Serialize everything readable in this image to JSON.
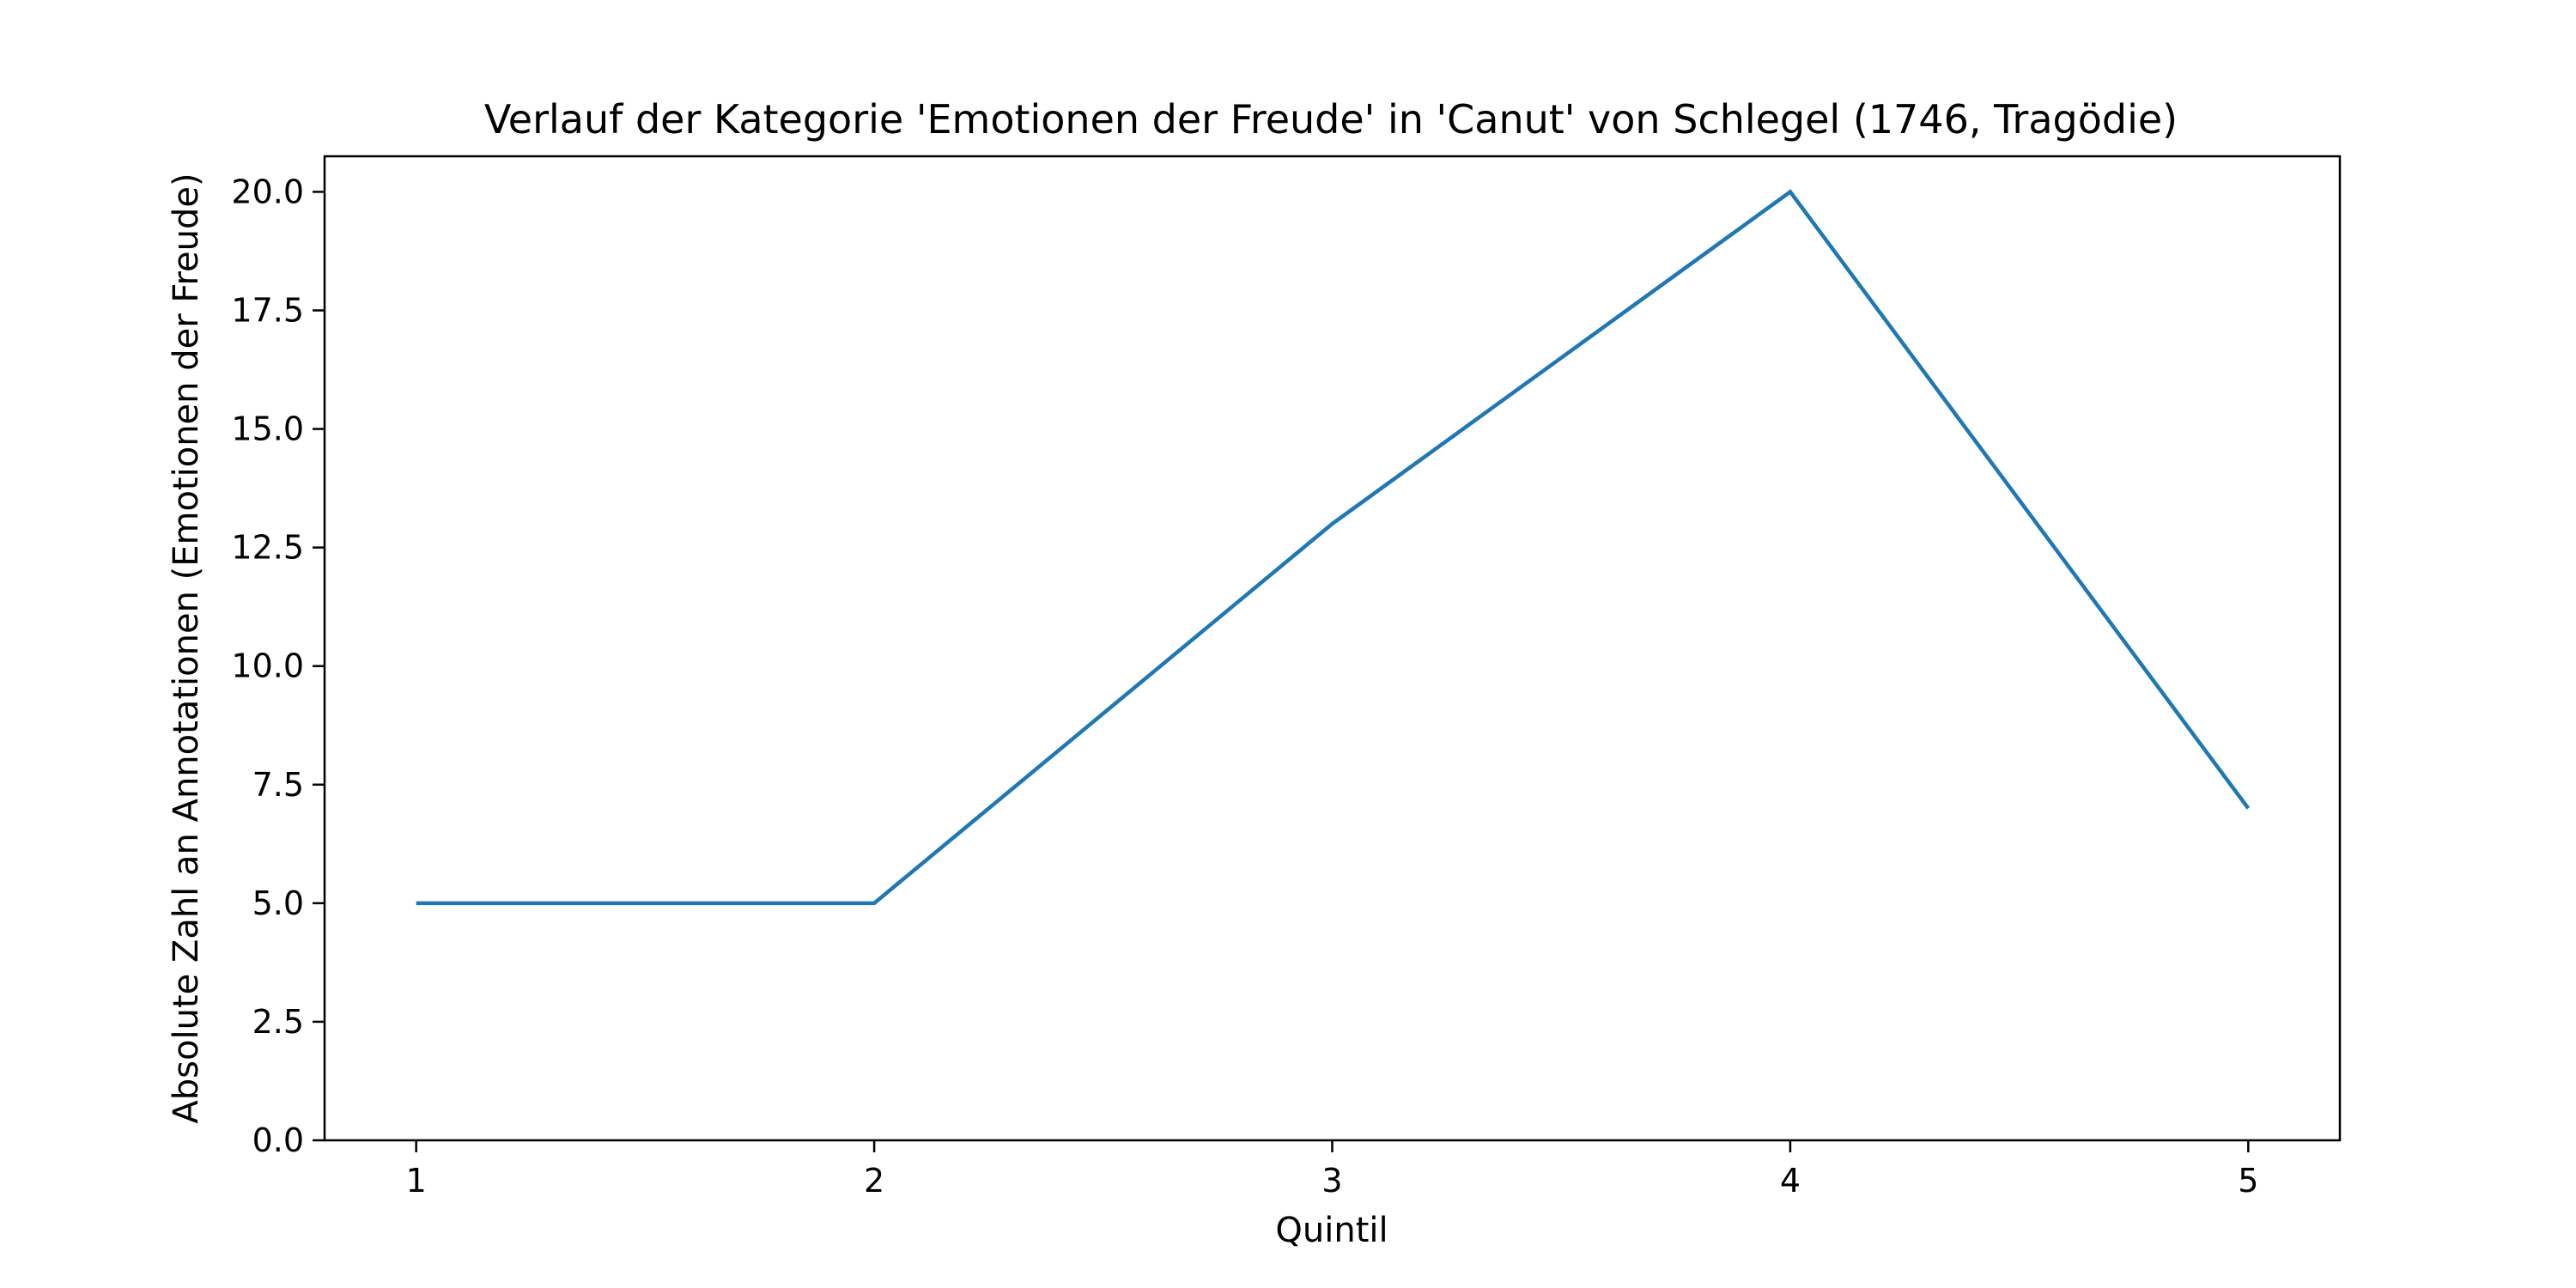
{
  "chart_data": {
    "type": "line",
    "title": "Verlauf der Kategorie 'Emotionen der Freude' in 'Canut' von Schlegel (1746, Tragödie)",
    "xlabel": "Quintil",
    "ylabel": "Absolute Zahl an Annotationen (Emotionen der Freude)",
    "x": [
      1,
      2,
      3,
      4,
      5
    ],
    "xlim": [
      0.8,
      5.2
    ],
    "ylim": [
      0,
      20.75
    ],
    "xticks": [
      1,
      2,
      3,
      4,
      5
    ],
    "xtick_labels": [
      "1",
      "2",
      "3",
      "4",
      "5"
    ],
    "yticks": [
      0,
      2.5,
      5,
      7.5,
      10,
      12.5,
      15,
      17.5,
      20
    ],
    "ytick_labels": [
      "0.0",
      "2.5",
      "5.0",
      "7.5",
      "10.0",
      "12.5",
      "15.0",
      "17.5",
      "20.0"
    ],
    "grid": false,
    "series": [
      {
        "values": [
          5,
          5,
          13,
          20,
          7
        ],
        "color": "#1f77b4"
      }
    ]
  }
}
